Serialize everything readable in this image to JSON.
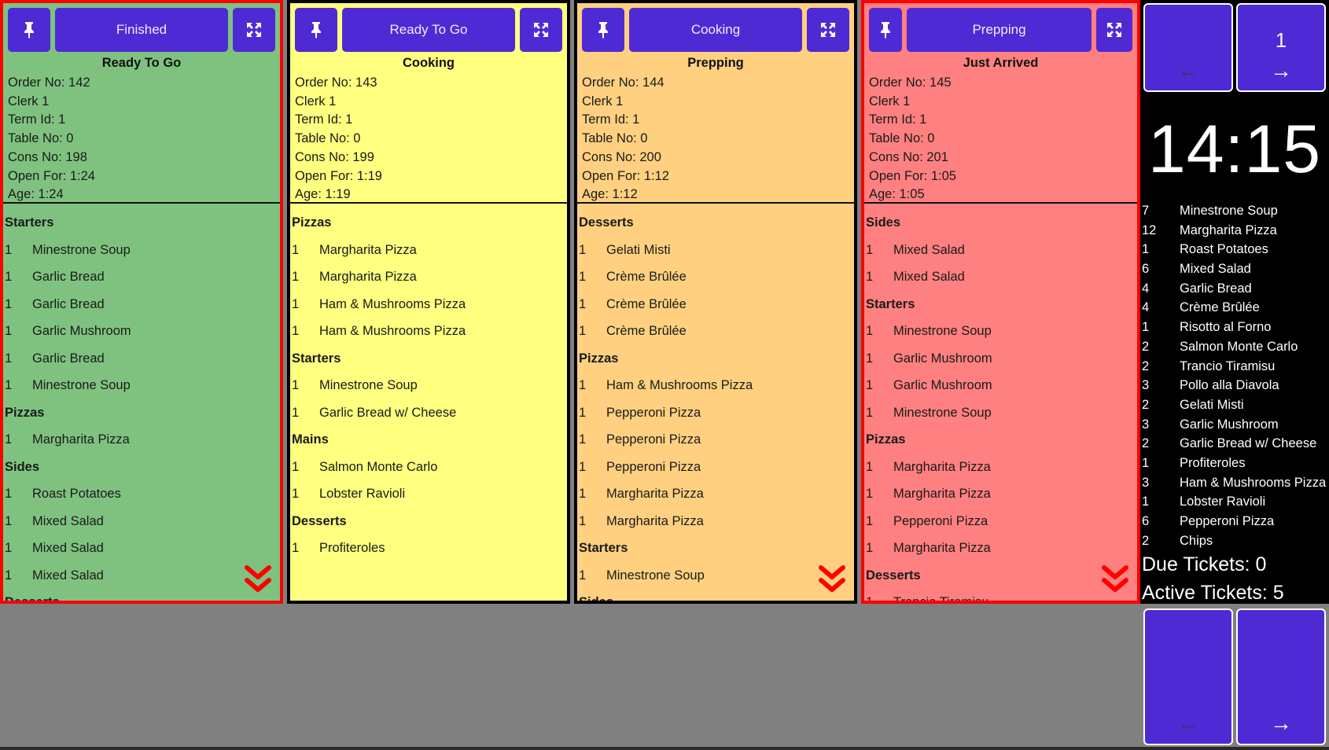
{
  "colors": {
    "button": "#4e2ad4",
    "alert_border": "#ff0000",
    "normal_border": "#000000",
    "background": "#808080",
    "sidebar": "#000000"
  },
  "icons": {
    "pin": "pin-icon",
    "expand": "expand-icon",
    "scroll_more": "double-chevron-down-icon"
  },
  "tickets": [
    {
      "action_label": "Finished",
      "status": "Ready To Go",
      "bg": "#7fc280",
      "alert": true,
      "show_scroll": true,
      "info": [
        "Order No: 142",
        "Clerk 1",
        "Term Id: 1",
        "Table No: 0",
        "Cons No: 198",
        "Open For: 1:24",
        "Age: 1:24"
      ],
      "lines": [
        {
          "cat": "Starters"
        },
        {
          "q": "1",
          "name": "Minestrone Soup"
        },
        {
          "q": "1",
          "name": "Garlic Bread"
        },
        {
          "q": "1",
          "name": "Garlic Bread"
        },
        {
          "q": "1",
          "name": "Garlic Mushroom"
        },
        {
          "q": "1",
          "name": "Garlic Bread"
        },
        {
          "q": "1",
          "name": "Minestrone Soup"
        },
        {
          "cat": "Pizzas"
        },
        {
          "q": "1",
          "name": "Margharita Pizza"
        },
        {
          "cat": "Sides"
        },
        {
          "q": "1",
          "name": "Roast Potatoes"
        },
        {
          "q": "1",
          "name": "Mixed Salad"
        },
        {
          "q": "1",
          "name": "Mixed Salad"
        },
        {
          "q": "1",
          "name": "Mixed Salad"
        },
        {
          "cat": "Desserts"
        }
      ]
    },
    {
      "action_label": "Ready To Go",
      "status": "Cooking",
      "bg": "#ffff80",
      "alert": false,
      "show_scroll": false,
      "info": [
        "Order No: 143",
        "Clerk 1",
        "Term Id: 1",
        "Table No: 0",
        "Cons No: 199",
        "Open For: 1:19",
        "Age: 1:19"
      ],
      "lines": [
        {
          "cat": "Pizzas"
        },
        {
          "q": "1",
          "name": "Margharita Pizza"
        },
        {
          "q": "1",
          "name": "Margharita Pizza"
        },
        {
          "q": "1",
          "name": "Ham & Mushrooms Pizza"
        },
        {
          "q": "1",
          "name": "Ham & Mushrooms Pizza"
        },
        {
          "cat": "Starters"
        },
        {
          "q": "1",
          "name": "Minestrone Soup"
        },
        {
          "q": "1",
          "name": "Garlic Bread w/ Cheese"
        },
        {
          "cat": "Mains"
        },
        {
          "q": "1",
          "name": "Salmon Monte Carlo"
        },
        {
          "q": "1",
          "name": "Lobster Ravioli"
        },
        {
          "cat": "Desserts"
        },
        {
          "q": "1",
          "name": "Profiteroles"
        }
      ]
    },
    {
      "action_label": "Cooking",
      "status": "Prepping",
      "bg": "#ffd080",
      "alert": false,
      "show_scroll": true,
      "info": [
        "Order No: 144",
        "Clerk 1",
        "Term Id: 1",
        "Table No: 0",
        "Cons No: 200",
        "Open For: 1:12",
        "Age: 1:12"
      ],
      "lines": [
        {
          "cat": "Desserts"
        },
        {
          "q": "1",
          "name": "Gelati Misti"
        },
        {
          "q": "1",
          "name": "Crème Brûlée"
        },
        {
          "q": "1",
          "name": "Crème Brûlée"
        },
        {
          "q": "1",
          "name": "Crème Brûlée"
        },
        {
          "cat": "Pizzas"
        },
        {
          "q": "1",
          "name": "Ham & Mushrooms Pizza"
        },
        {
          "q": "1",
          "name": "Pepperoni Pizza"
        },
        {
          "q": "1",
          "name": "Pepperoni Pizza"
        },
        {
          "q": "1",
          "name": "Pepperoni Pizza"
        },
        {
          "q": "1",
          "name": "Margharita Pizza"
        },
        {
          "q": "1",
          "name": "Margharita Pizza"
        },
        {
          "cat": "Starters"
        },
        {
          "q": "1",
          "name": "Minestrone Soup"
        },
        {
          "cat": "Sides"
        }
      ]
    },
    {
      "action_label": "Prepping",
      "status": "Just Arrived",
      "bg": "#ff8080",
      "alert": true,
      "show_scroll": true,
      "info": [
        "Order No: 145",
        "Clerk 1",
        "Term Id: 1",
        "Table No: 0",
        "Cons No: 201",
        "Open For: 1:05",
        "Age: 1:05"
      ],
      "lines": [
        {
          "cat": "Sides"
        },
        {
          "q": "1",
          "name": "Mixed Salad"
        },
        {
          "q": "1",
          "name": "Mixed Salad"
        },
        {
          "cat": "Starters"
        },
        {
          "q": "1",
          "name": "Minestrone Soup"
        },
        {
          "q": "1",
          "name": "Garlic Mushroom"
        },
        {
          "q": "1",
          "name": "Garlic Mushroom"
        },
        {
          "q": "1",
          "name": "Minestrone Soup"
        },
        {
          "cat": "Pizzas"
        },
        {
          "q": "1",
          "name": "Margharita Pizza"
        },
        {
          "q": "1",
          "name": "Margharita Pizza"
        },
        {
          "q": "1",
          "name": "Pepperoni Pizza"
        },
        {
          "q": "1",
          "name": "Margharita Pizza"
        },
        {
          "cat": "Desserts"
        },
        {
          "q": "1",
          "name": "Trancio Tiramisu"
        }
      ]
    }
  ],
  "sidebar": {
    "top_prev": {
      "number": "",
      "arrow": "←"
    },
    "top_next": {
      "number": "1",
      "arrow": "→"
    },
    "clock": "14:15",
    "summary": [
      {
        "q": "7",
        "name": "Minestrone Soup"
      },
      {
        "q": "12",
        "name": "Margharita Pizza"
      },
      {
        "q": "1",
        "name": "Roast Potatoes"
      },
      {
        "q": "6",
        "name": "Mixed Salad"
      },
      {
        "q": "4",
        "name": "Garlic Bread"
      },
      {
        "q": "4",
        "name": "Crème Brûlée"
      },
      {
        "q": "1",
        "name": "Risotto al Forno"
      },
      {
        "q": "2",
        "name": "Salmon Monte Carlo"
      },
      {
        "q": "2",
        "name": "Trancio Tiramisu"
      },
      {
        "q": "3",
        "name": "Pollo alla Diavola"
      },
      {
        "q": "2",
        "name": "Gelati Misti"
      },
      {
        "q": "3",
        "name": "Garlic Mushroom"
      },
      {
        "q": "2",
        "name": "Garlic Bread w/ Cheese"
      },
      {
        "q": "1",
        "name": "Profiteroles"
      },
      {
        "q": "3",
        "name": "Ham & Mushrooms Pizza"
      },
      {
        "q": "1",
        "name": "Lobster Ravioli"
      },
      {
        "q": "6",
        "name": "Pepperoni Pizza"
      },
      {
        "q": "2",
        "name": "Chips"
      }
    ],
    "due_tickets": "Due Tickets: 0",
    "active_tickets": "Active Tickets: 5",
    "bottom_prev": {
      "arrow": "←"
    },
    "bottom_next": {
      "arrow": "→"
    }
  }
}
